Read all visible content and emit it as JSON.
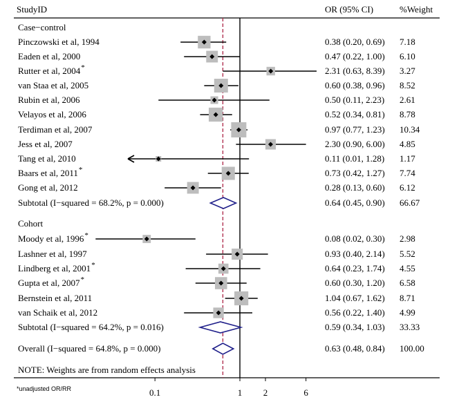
{
  "headers": {
    "study": "StudyID",
    "or_ci": "OR (95% CI)",
    "weight": "%Weight"
  },
  "footnote": "NOTE: Weights are from random effects analysis",
  "unadjusted_note": "*unadjusted OR/RR",
  "chart_data": {
    "type": "forest",
    "x_scale": "log",
    "xlim": [
      0.048,
      8.0
    ],
    "x_ticks": [
      0.1,
      1,
      2,
      6
    ],
    "x_tick_labels": [
      "0.1",
      "1",
      "2",
      "6"
    ],
    "null_line": 1,
    "overall_line": 0.63,
    "colors": {
      "box": "#bdbdbd",
      "diamond": "#1f1f8a",
      "overall_line": "#b03050",
      "line": "#000000"
    },
    "groups": [
      {
        "name": "Case−control",
        "studies": [
          {
            "label": "Pinczowski et al, 1994",
            "or": 0.38,
            "lo": 0.2,
            "hi": 0.69,
            "ci_text": "0.38 (0.20, 0.69)",
            "weight": "7.18"
          },
          {
            "label": "Eaden et al, 2000",
            "or": 0.47,
            "lo": 0.22,
            "hi": 1.0,
            "ci_text": "0.47 (0.22, 1.00)",
            "weight": "6.10"
          },
          {
            "label": "Rutter et al, 2004",
            "star": "*",
            "or": 2.31,
            "lo": 0.63,
            "hi": 8.39,
            "ci_text": "2.31 (0.63, 8.39)",
            "weight": "3.27"
          },
          {
            "label": "van Staa et al, 2005",
            "or": 0.6,
            "lo": 0.38,
            "hi": 0.96,
            "ci_text": "0.60 (0.38, 0.96)",
            "weight": "8.52"
          },
          {
            "label": "Rubin et al, 2006",
            "or": 0.5,
            "lo": 0.11,
            "hi": 2.23,
            "ci_text": "0.50 (0.11, 2.23)",
            "weight": "2.61"
          },
          {
            "label": "Velayos et al, 2006",
            "or": 0.52,
            "lo": 0.34,
            "hi": 0.81,
            "ci_text": "0.52 (0.34, 0.81)",
            "weight": "8.78"
          },
          {
            "label": "Terdiman et al, 2007",
            "or": 0.97,
            "lo": 0.77,
            "hi": 1.23,
            "ci_text": "0.97 (0.77, 1.23)",
            "weight": "10.34"
          },
          {
            "label": "Jess et al, 2007",
            "or": 2.3,
            "lo": 0.9,
            "hi": 6.0,
            "ci_text": "2.30 (0.90, 6.00)",
            "weight": "4.85"
          },
          {
            "label": "Tang et al, 2010",
            "or": 0.11,
            "lo": 0.01,
            "hi": 1.28,
            "ci_text": "0.11 (0.01, 1.28)",
            "weight": "1.17",
            "arrow_left": true
          },
          {
            "label": "Baars et al, 2011",
            "star": "*",
            "or": 0.73,
            "lo": 0.42,
            "hi": 1.27,
            "ci_text": "0.73 (0.42, 1.27)",
            "weight": "7.74"
          },
          {
            "label": "Gong et al, 2012",
            "or": 0.28,
            "lo": 0.13,
            "hi": 0.6,
            "ci_text": "0.28 (0.13, 0.60)",
            "weight": "6.12"
          }
        ],
        "subtotal": {
          "label": "Subtotal  (I−squared = 68.2%, p = 0.000)",
          "or": 0.64,
          "lo": 0.45,
          "hi": 0.9,
          "ci_text": "0.64 (0.45, 0.90)",
          "weight": "66.67"
        }
      },
      {
        "name": "Cohort",
        "studies": [
          {
            "label": "Moody et al, 1996",
            "star": "*",
            "or": 0.08,
            "lo": 0.02,
            "hi": 0.3,
            "ci_text": "0.08 (0.02, 0.30)",
            "weight": "2.98"
          },
          {
            "label": "Lashner et al, 1997",
            "or": 0.93,
            "lo": 0.4,
            "hi": 2.14,
            "ci_text": "0.93 (0.40, 2.14)",
            "weight": "5.52"
          },
          {
            "label": "Lindberg et al, 2001",
            "star": "*",
            "or": 0.64,
            "lo": 0.23,
            "hi": 1.74,
            "ci_text": "0.64 (0.23, 1.74)",
            "weight": "4.55"
          },
          {
            "label": "Gupta et al, 2007",
            "star": "*",
            "or": 0.6,
            "lo": 0.3,
            "hi": 1.2,
            "ci_text": "0.60 (0.30, 1.20)",
            "weight": "6.58"
          },
          {
            "label": "Bernstein et al, 2011",
            "or": 1.04,
            "lo": 0.67,
            "hi": 1.62,
            "ci_text": "1.04 (0.67, 1.62)",
            "weight": "8.71"
          },
          {
            "label": "van Schaik et al, 2012",
            "or": 0.56,
            "lo": 0.22,
            "hi": 1.4,
            "ci_text": "0.56 (0.22, 1.40)",
            "weight": "4.99"
          }
        ],
        "subtotal": {
          "label": "Subtotal  (I−squared = 64.2%, p = 0.016)",
          "or": 0.59,
          "lo": 0.34,
          "hi": 1.03,
          "ci_text": "0.59 (0.34, 1.03)",
          "weight": "33.33"
        }
      }
    ],
    "overall": {
      "label": "Overall  (I−squared = 64.8%, p = 0.000)",
      "or": 0.63,
      "lo": 0.48,
      "hi": 0.84,
      "ci_text": "0.63 (0.48, 0.84)",
      "weight": "100.00"
    }
  }
}
